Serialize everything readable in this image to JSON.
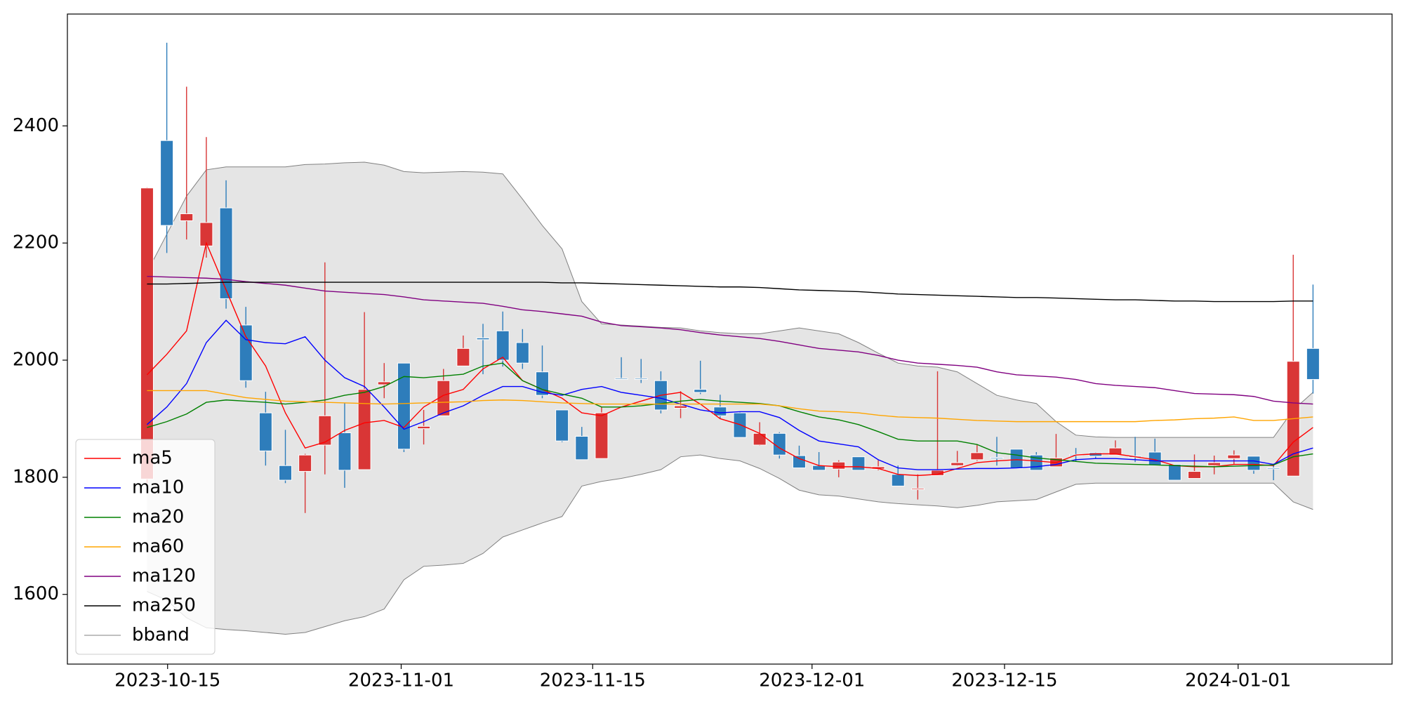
{
  "chart_data": {
    "type": "candlestick",
    "x": [
      0,
      1,
      2,
      3,
      4,
      5,
      6,
      7,
      8,
      9,
      10,
      11,
      12,
      13,
      14,
      15,
      16,
      17,
      18,
      19,
      20,
      21,
      22,
      23,
      24,
      25,
      26,
      27,
      28,
      29,
      30,
      31,
      32,
      33,
      34,
      35,
      36,
      37,
      38,
      39,
      40,
      41,
      42,
      43,
      44,
      45,
      46,
      47,
      48,
      49,
      50,
      51,
      52,
      53,
      54,
      55,
      56,
      57,
      58,
      59
    ],
    "open": [
      1797,
      2375,
      2238,
      2195,
      2260,
      2060,
      1910,
      1820,
      1810,
      1855,
      1876,
      1813,
      1958,
      1995,
      1883,
      1905,
      1990,
      2038,
      2050,
      2030,
      1980,
      1915,
      1870,
      1832,
      1969,
      1969,
      1965,
      1918,
      1950,
      1920,
      1910,
      1855,
      1875,
      1837,
      1820,
      1814,
      1835,
      1814,
      1805,
      1779,
      1803,
      1820,
      1830,
      1834,
      1848,
      1838,
      1818,
      1839,
      1842,
      1838,
      1836,
      1843,
      1822,
      1798,
      1820,
      1832,
      1836,
      1816,
      1802,
      2020
    ],
    "high": [
      2295,
      2542,
      2467,
      2381,
      2307,
      2091,
      1946,
      1881,
      1840,
      2167,
      1927,
      2082,
      1995,
      1995,
      1915,
      1985,
      2042,
      2062,
      2083,
      2053,
      2025,
      1915,
      1886,
      1920,
      2005,
      2002,
      1981,
      1947,
      1999,
      1941,
      1912,
      1894,
      1877,
      1854,
      1843,
      1829,
      1835,
      1829,
      1820,
      1805,
      1981,
      1845,
      1856,
      1869,
      1848,
      1843,
      1874,
      1850,
      1843,
      1863,
      1869,
      1866,
      1822,
      1839,
      1837,
      1846,
      1836,
      1823,
      2180,
      2129
    ],
    "low": [
      1790,
      2183,
      2206,
      2175,
      2088,
      1953,
      1820,
      1790,
      1739,
      1805,
      1782,
      1813,
      1935,
      1843,
      1856,
      1905,
      1990,
      1976,
      1989,
      1985,
      1935,
      1860,
      1830,
      1832,
      1968,
      1961,
      1909,
      1901,
      1942,
      1900,
      1868,
      1854,
      1832,
      1816,
      1812,
      1800,
      1812,
      1812,
      1785,
      1762,
      1803,
      1819,
      1828,
      1820,
      1815,
      1812,
      1818,
      1827,
      1832,
      1838,
      1826,
      1820,
      1795,
      1798,
      1805,
      1822,
      1806,
      1795,
      1802,
      1943
    ],
    "close": [
      2294,
      2230,
      2250,
      2235,
      2105,
      1965,
      1845,
      1795,
      1838,
      1905,
      1812,
      1950,
      1963,
      1848,
      1887,
      1965,
      2020,
      2035,
      2000,
      1995,
      1940,
      1862,
      1830,
      1910,
      1968,
      1968,
      1915,
      1922,
      1945,
      1905,
      1868,
      1875,
      1838,
      1816,
      1812,
      1826,
      1812,
      1818,
      1785,
      1781,
      1812,
      1825,
      1842,
      1833,
      1815,
      1812,
      1833,
      1838,
      1836,
      1850,
      1835,
      1820,
      1795,
      1810,
      1825,
      1838,
      1812,
      1815,
      1998,
      1967
    ],
    "up_color": "#d93636",
    "down_color": "#2e7dbb",
    "series": [
      {
        "name": "ma5",
        "color": "#ff0000",
        "values": [
          1975,
          2010,
          2050,
          2200,
          2120,
          2040,
          1990,
          1910,
          1850,
          1860,
          1880,
          1893,
          1897,
          1885,
          1920,
          1940,
          1950,
          1985,
          2005,
          1965,
          1950,
          1935,
          1910,
          1905,
          1920,
          1930,
          1940,
          1945,
          1925,
          1900,
          1890,
          1875,
          1850,
          1832,
          1820,
          1818,
          1818,
          1815,
          1805,
          1803,
          1805,
          1815,
          1825,
          1828,
          1830,
          1828,
          1825,
          1838,
          1840,
          1840,
          1835,
          1830,
          1820,
          1818,
          1818,
          1822,
          1822,
          1820,
          1860,
          1885
        ]
      },
      {
        "name": "ma10",
        "color": "#0000ff",
        "values": [
          1890,
          1920,
          1960,
          2030,
          2068,
          2035,
          2030,
          2028,
          2040,
          2000,
          1970,
          1955,
          1920,
          1882,
          1895,
          1910,
          1922,
          1940,
          1955,
          1955,
          1945,
          1940,
          1950,
          1955,
          1945,
          1940,
          1935,
          1925,
          1915,
          1910,
          1912,
          1912,
          1902,
          1880,
          1862,
          1857,
          1852,
          1830,
          1816,
          1813,
          1813,
          1814,
          1815,
          1815,
          1816,
          1818,
          1822,
          1830,
          1832,
          1832,
          1830,
          1828,
          1828,
          1828,
          1828,
          1828,
          1828,
          1822,
          1840,
          1850
        ]
      },
      {
        "name": "ma20",
        "color": "#008000",
        "values": [
          1885,
          1895,
          1908,
          1928,
          1932,
          1930,
          1928,
          1925,
          1928,
          1932,
          1940,
          1945,
          1955,
          1972,
          1970,
          1973,
          1976,
          1990,
          1995,
          1965,
          1950,
          1942,
          1935,
          1920,
          1920,
          1922,
          1926,
          1930,
          1933,
          1930,
          1928,
          1926,
          1922,
          1912,
          1903,
          1898,
          1890,
          1878,
          1865,
          1862,
          1862,
          1862,
          1856,
          1842,
          1838,
          1833,
          1830,
          1827,
          1824,
          1823,
          1822,
          1821,
          1820,
          1819,
          1818,
          1819,
          1820,
          1821,
          1835,
          1840
        ]
      },
      {
        "name": "ma60",
        "color": "#ffa500",
        "values": [
          1948,
          1948,
          1948,
          1948,
          1942,
          1936,
          1933,
          1930,
          1929,
          1928,
          1927,
          1926,
          1925,
          1926,
          1927,
          1928,
          1929,
          1931,
          1932,
          1931,
          1929,
          1927,
          1926,
          1925,
          1925,
          1925,
          1925,
          1925,
          1925,
          1925,
          1925,
          1925,
          1922,
          1917,
          1913,
          1912,
          1910,
          1906,
          1903,
          1902,
          1901,
          1899,
          1897,
          1896,
          1895,
          1895,
          1895,
          1895,
          1895,
          1895,
          1895,
          1897,
          1898,
          1900,
          1901,
          1903,
          1897,
          1897,
          1900,
          1903
        ]
      },
      {
        "name": "ma120",
        "color": "#800080",
        "values": [
          2143,
          2142,
          2141,
          2140,
          2138,
          2134,
          2131,
          2128,
          2123,
          2118,
          2116,
          2114,
          2112,
          2108,
          2103,
          2101,
          2099,
          2097,
          2092,
          2086,
          2083,
          2079,
          2075,
          2065,
          2059,
          2057,
          2055,
          2052,
          2047,
          2043,
          2040,
          2037,
          2032,
          2026,
          2020,
          2017,
          2014,
          2008,
          2000,
          1995,
          1993,
          1991,
          1988,
          1980,
          1975,
          1973,
          1971,
          1967,
          1960,
          1957,
          1955,
          1953,
          1948,
          1943,
          1942,
          1941,
          1938,
          1930,
          1927,
          1925
        ]
      },
      {
        "name": "ma250",
        "color": "#000000",
        "values": [
          2130,
          2130,
          2131,
          2132,
          2133,
          2133,
          2133,
          2133,
          2133,
          2133,
          2133,
          2133,
          2133,
          2133,
          2133,
          2133,
          2133,
          2133,
          2133,
          2133,
          2133,
          2132,
          2132,
          2131,
          2130,
          2129,
          2128,
          2127,
          2126,
          2125,
          2125,
          2124,
          2122,
          2120,
          2119,
          2118,
          2117,
          2115,
          2113,
          2112,
          2111,
          2110,
          2109,
          2108,
          2107,
          2107,
          2106,
          2105,
          2104,
          2103,
          2103,
          2102,
          2101,
          2101,
          2100,
          2100,
          2100,
          2100,
          2101,
          2101
        ]
      }
    ],
    "bband": {
      "name": "bband",
      "color": "#808080",
      "fill": "#e5e5e5",
      "upper": [
        2150,
        2215,
        2280,
        2325,
        2330,
        2330,
        2330,
        2330,
        2334,
        2335,
        2337,
        2338,
        2333,
        2322,
        2320,
        2321,
        2322,
        2321,
        2318,
        2275,
        2230,
        2190,
        2100,
        2062,
        2060,
        2058,
        2056,
        2055,
        2050,
        2047,
        2045,
        2045,
        2050,
        2055,
        2050,
        2045,
        2030,
        2012,
        1995,
        1990,
        1988,
        1980,
        1960,
        1940,
        1932,
        1926,
        1895,
        1872,
        1869,
        1868,
        1868,
        1868,
        1868,
        1868,
        1868,
        1868,
        1868,
        1868,
        1915,
        1945
      ],
      "lower": [
        1605,
        1590,
        1560,
        1543,
        1540,
        1538,
        1535,
        1532,
        1535,
        1545,
        1555,
        1562,
        1575,
        1625,
        1648,
        1650,
        1653,
        1670,
        1698,
        1710,
        1722,
        1733,
        1785,
        1793,
        1798,
        1805,
        1813,
        1835,
        1838,
        1832,
        1828,
        1815,
        1798,
        1778,
        1770,
        1768,
        1763,
        1758,
        1755,
        1753,
        1751,
        1748,
        1752,
        1758,
        1760,
        1762,
        1775,
        1788,
        1790,
        1790,
        1790,
        1790,
        1790,
        1790,
        1790,
        1790,
        1790,
        1790,
        1758,
        1745
      ]
    },
    "xlim": [
      -4.03,
      63.0
    ],
    "xticks": [
      {
        "value": 1.04,
        "label": "2023-10-15"
      },
      {
        "value": 12.86,
        "label": "2023-11-01"
      },
      {
        "value": 22.55,
        "label": "2023-11-15"
      },
      {
        "value": 33.65,
        "label": "2023-12-01"
      },
      {
        "value": 43.39,
        "label": "2023-12-15"
      },
      {
        "value": 55.21,
        "label": "2024-01-01"
      }
    ],
    "ylim": [
      1481,
      2591
    ],
    "yticks": [
      1600,
      1800,
      2000,
      2200,
      2400
    ],
    "legend": "lower left"
  }
}
